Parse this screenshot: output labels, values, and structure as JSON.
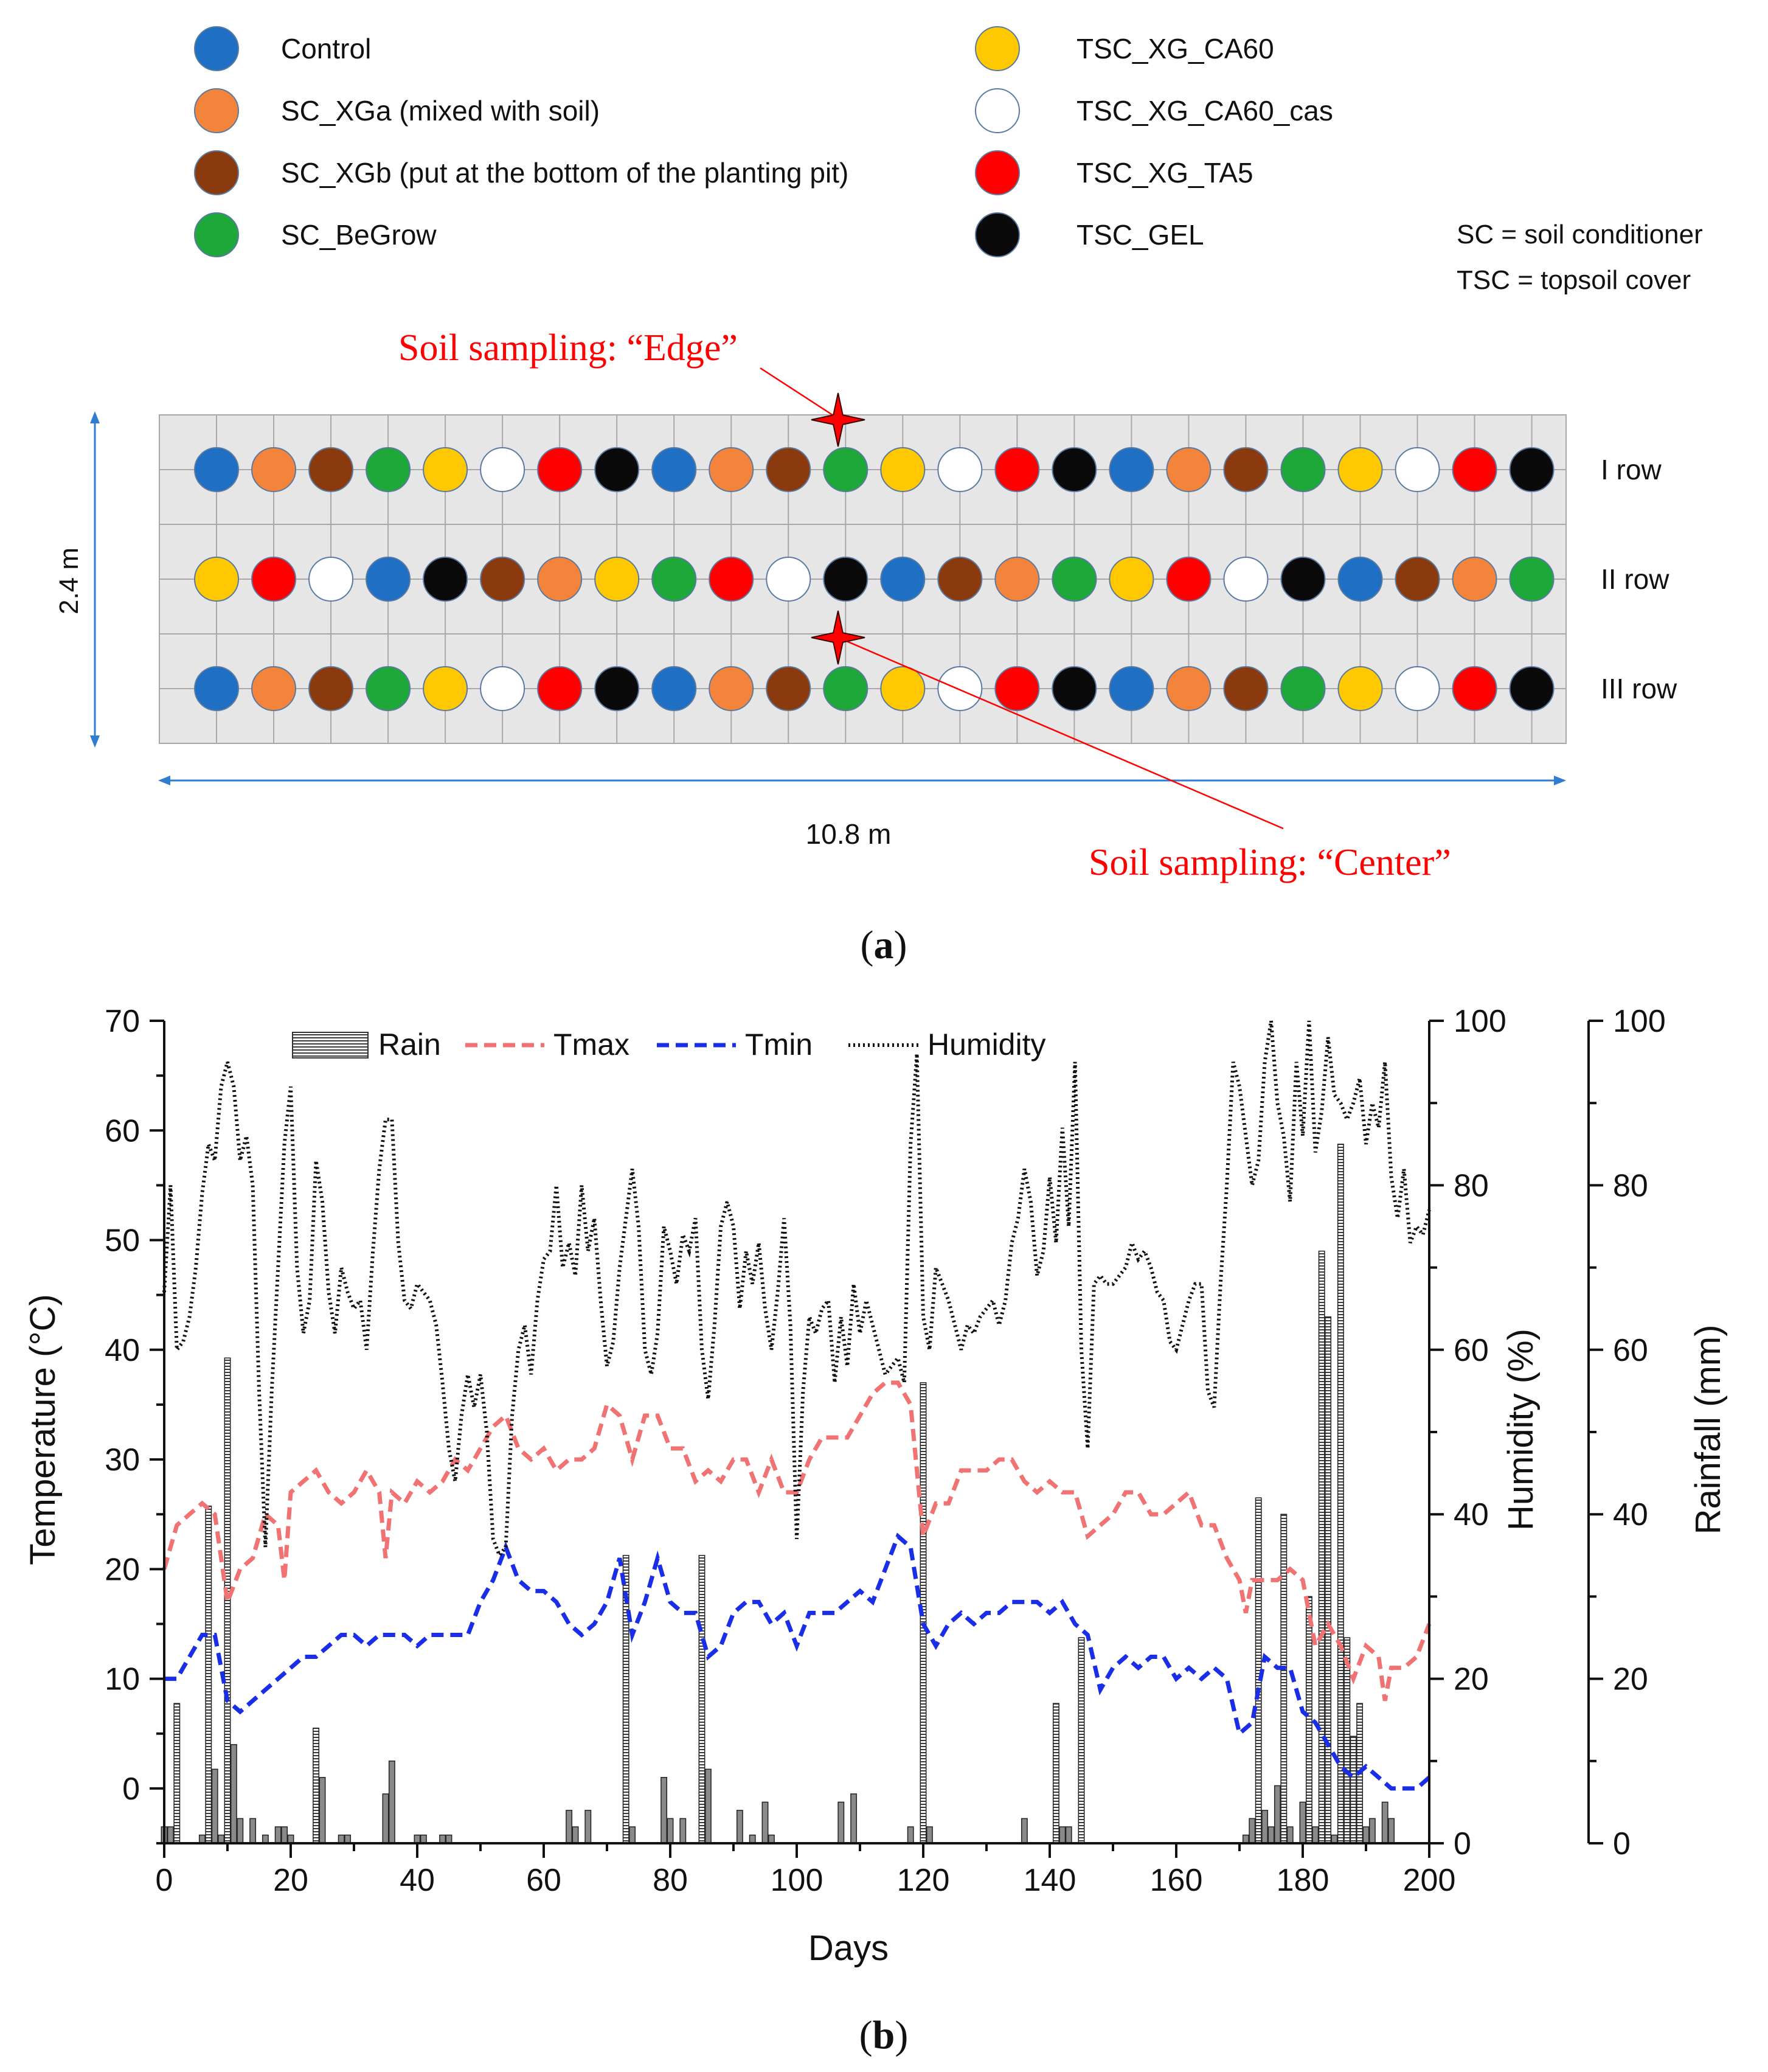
{
  "colors": {
    "control": "#1f6fc5",
    "xga": "#f4843c",
    "xgb": "#8b3a0f",
    "begrow": "#1fa83a",
    "ca60": "#ffc800",
    "cas": "#ffffff",
    "ta5": "#ff0000",
    "gel": "#0a0a0a",
    "tmax": "#f07272",
    "tmin": "#1a2ee8",
    "humidity": "#111111",
    "annotation": "#ff0000",
    "dimension": "#2e7dd1"
  },
  "legend_top": [
    {
      "key": "control",
      "label": "Control"
    },
    {
      "key": "xga",
      "label": "SC_XGa (mixed with soil)"
    },
    {
      "key": "xgb",
      "label": "SC_XGb (put at the bottom of the planting pit)"
    },
    {
      "key": "begrow",
      "label": "SC_BeGrow"
    },
    {
      "key": "ca60",
      "label": "TSC_XG_CA60"
    },
    {
      "key": "cas",
      "label": "TSC_XG_CA60_cas"
    },
    {
      "key": "ta5",
      "label": "TSC_XG_TA5"
    },
    {
      "key": "gel",
      "label": "TSC_GEL"
    }
  ],
  "abbreviations": [
    "SC = soil conditioner",
    "TSC = topsoil cover"
  ],
  "layout": {
    "rows": [
      {
        "label": "I row",
        "plots": [
          "control",
          "xga",
          "xgb",
          "begrow",
          "ca60",
          "cas",
          "ta5",
          "gel",
          "control",
          "xga",
          "xgb",
          "begrow",
          "ca60",
          "cas",
          "ta5",
          "gel",
          "control",
          "xga",
          "xgb",
          "begrow",
          "ca60",
          "cas",
          "ta5",
          "gel"
        ]
      },
      {
        "label": "II row",
        "plots": [
          "ca60",
          "ta5",
          "cas",
          "control",
          "gel",
          "xgb",
          "xga",
          "ca60",
          "begrow",
          "ta5",
          "cas",
          "gel",
          "control",
          "xgb",
          "xga",
          "begrow",
          "ca60",
          "ta5",
          "cas",
          "gel",
          "control",
          "xgb",
          "xga",
          "begrow"
        ]
      },
      {
        "label": "III row",
        "plots": [
          "control",
          "xga",
          "xgb",
          "begrow",
          "ca60",
          "cas",
          "ta5",
          "gel",
          "control",
          "xga",
          "xgb",
          "begrow",
          "ca60",
          "cas",
          "ta5",
          "gel",
          "control",
          "xga",
          "xgb",
          "begrow",
          "ca60",
          "cas",
          "ta5",
          "gel"
        ]
      }
    ],
    "height_label": "2.4 m",
    "width_label": "10.8 m",
    "sampling_edge": "Soil sampling: “Edge”",
    "sampling_center": "Soil sampling: “Center”"
  },
  "panel_labels": {
    "a": "a",
    "b": "b"
  },
  "chart_data": {
    "type": "line",
    "title": "",
    "xlabel": "Days",
    "ylabel_left": "Temperature (°C)",
    "ylabel_right1": "Humidity (%)",
    "ylabel_right2": "Rainfall (mm)",
    "xlim": [
      0,
      200
    ],
    "ylim_temperature": [
      -5,
      70
    ],
    "ylim_humidity": [
      0,
      100
    ],
    "ylim_rainfall": [
      0,
      100
    ],
    "x_ticks": [
      0,
      20,
      40,
      60,
      80,
      100,
      120,
      140,
      160,
      180,
      200
    ],
    "temperature_ticks": [
      0,
      10,
      20,
      30,
      40,
      50,
      60,
      70
    ],
    "humidity_ticks": [
      0,
      20,
      40,
      60,
      80,
      100
    ],
    "rainfall_ticks": [
      0,
      20,
      40,
      60,
      80,
      100
    ],
    "legend": {
      "rain": "Rain",
      "tmax": "Tmax",
      "tmin": "Tmin",
      "humidity": "Humidity"
    },
    "series": [
      {
        "name": "Tmax",
        "x": [
          0,
          2,
          4,
          6,
          8,
          10,
          12,
          14,
          16,
          18,
          19,
          20,
          22,
          24,
          26,
          28,
          30,
          32,
          34,
          35,
          36,
          38,
          40,
          42,
          44,
          46,
          48,
          50,
          52,
          54,
          56,
          58,
          60,
          62,
          64,
          66,
          68,
          70,
          72,
          74,
          76,
          78,
          80,
          82,
          84,
          86,
          88,
          90,
          92,
          94,
          96,
          98,
          100,
          102,
          104,
          106,
          108,
          110,
          112,
          114,
          116,
          118,
          120,
          122,
          124,
          126,
          128,
          130,
          132,
          134,
          136,
          138,
          140,
          142,
          144,
          146,
          148,
          150,
          152,
          154,
          156,
          158,
          160,
          162,
          164,
          166,
          168,
          170,
          171,
          172,
          174,
          176,
          178,
          180,
          182,
          184,
          186,
          188,
          190,
          192,
          193,
          194,
          196,
          198,
          200
        ],
        "values": [
          20,
          24,
          25,
          26,
          25,
          17,
          20,
          21,
          25,
          24,
          19,
          27,
          28,
          29,
          27,
          26,
          27,
          29,
          27,
          21,
          27,
          26,
          28,
          27,
          28,
          30,
          29,
          31,
          33,
          34,
          31,
          30,
          31,
          29,
          30,
          30,
          31,
          35,
          34,
          30,
          34,
          34,
          31,
          31,
          28,
          29,
          28,
          30,
          30,
          27,
          30,
          27,
          27,
          30,
          32,
          32,
          32,
          34,
          36,
          37,
          37,
          35,
          23,
          26,
          26,
          29,
          29,
          29,
          30,
          30,
          28,
          27,
          28,
          27,
          27,
          23,
          24,
          25,
          27,
          27,
          25,
          25,
          26,
          27,
          24,
          24,
          21,
          19,
          16,
          19,
          19,
          19,
          20,
          19,
          13,
          15,
          13,
          10,
          13,
          12,
          8,
          11,
          11,
          12,
          15
        ]
      },
      {
        "name": "Tmin",
        "x": [
          0,
          2,
          4,
          6,
          8,
          10,
          12,
          14,
          16,
          18,
          20,
          22,
          24,
          26,
          28,
          30,
          32,
          34,
          36,
          38,
          40,
          42,
          44,
          46,
          48,
          50,
          52,
          54,
          56,
          58,
          60,
          62,
          64,
          66,
          68,
          70,
          72,
          74,
          76,
          78,
          80,
          82,
          84,
          86,
          88,
          90,
          92,
          94,
          96,
          98,
          100,
          102,
          104,
          106,
          108,
          110,
          112,
          114,
          116,
          118,
          120,
          122,
          124,
          126,
          128,
          130,
          132,
          134,
          136,
          138,
          140,
          142,
          144,
          146,
          148,
          150,
          152,
          154,
          156,
          158,
          160,
          162,
          164,
          166,
          168,
          170,
          172,
          174,
          176,
          178,
          180,
          182,
          184,
          186,
          188,
          190,
          192,
          194,
          196,
          198,
          200
        ],
        "values": [
          10,
          10,
          12,
          14,
          14,
          8,
          7,
          8,
          9,
          10,
          11,
          12,
          12,
          13,
          14,
          14,
          13,
          14,
          14,
          14,
          13,
          14,
          14,
          14,
          14,
          17,
          19,
          22,
          19,
          18,
          18,
          17,
          15,
          14,
          15,
          17,
          21,
          14,
          17,
          21,
          17,
          16,
          16,
          12,
          13,
          16,
          17,
          17,
          15,
          16,
          13,
          16,
          16,
          16,
          17,
          18,
          17,
          20,
          23,
          22,
          15,
          13,
          15,
          16,
          15,
          16,
          16,
          17,
          17,
          17,
          16,
          17,
          15,
          14,
          9,
          11,
          12,
          11,
          12,
          12,
          10,
          11,
          10,
          11,
          10,
          5,
          6,
          12,
          11,
          11,
          7,
          6,
          4,
          2,
          1,
          2,
          1,
          0,
          0,
          0,
          1
        ]
      },
      {
        "name": "Humidity",
        "x": [
          0,
          1,
          2,
          3,
          4,
          5,
          6,
          7,
          8,
          9,
          10,
          11,
          12,
          13,
          14,
          15,
          16,
          17,
          18,
          19,
          20,
          21,
          22,
          23,
          24,
          25,
          26,
          27,
          28,
          29,
          30,
          31,
          32,
          33,
          34,
          35,
          36,
          37,
          38,
          39,
          40,
          41,
          42,
          43,
          44,
          45,
          46,
          47,
          48,
          49,
          50,
          51,
          52,
          53,
          54,
          55,
          56,
          57,
          58,
          59,
          60,
          61,
          62,
          63,
          64,
          65,
          66,
          67,
          68,
          69,
          70,
          71,
          72,
          73,
          74,
          75,
          76,
          77,
          78,
          79,
          80,
          81,
          82,
          83,
          84,
          85,
          86,
          87,
          88,
          89,
          90,
          91,
          92,
          93,
          94,
          95,
          96,
          97,
          98,
          99,
          100,
          101,
          102,
          103,
          104,
          105,
          106,
          107,
          108,
          109,
          110,
          111,
          112,
          113,
          114,
          115,
          116,
          117,
          118,
          119,
          120,
          121,
          122,
          123,
          124,
          125,
          126,
          127,
          128,
          129,
          130,
          131,
          132,
          133,
          134,
          135,
          136,
          137,
          138,
          139,
          140,
          141,
          142,
          143,
          144,
          145,
          146,
          147,
          148,
          149,
          150,
          151,
          152,
          153,
          154,
          155,
          156,
          157,
          158,
          159,
          160,
          161,
          162,
          163,
          164,
          165,
          166,
          167,
          168,
          169,
          170,
          171,
          172,
          173,
          174,
          175,
          176,
          177,
          178,
          179,
          180,
          181,
          182,
          183,
          184,
          185,
          186,
          187,
          188,
          189,
          190,
          191,
          192,
          193,
          194,
          195,
          196,
          197,
          198,
          199,
          200
        ],
        "values": [
          67,
          80,
          60,
          61,
          64,
          70,
          79,
          85,
          83,
          92,
          95,
          92,
          83,
          86,
          80,
          55,
          36,
          55,
          70,
          85,
          92,
          70,
          62,
          66,
          83,
          78,
          67,
          62,
          70,
          67,
          65,
          66,
          60,
          72,
          82,
          88,
          88,
          73,
          66,
          65,
          68,
          67,
          66,
          63,
          56,
          48,
          44,
          52,
          57,
          53,
          57,
          50,
          37,
          35,
          36,
          52,
          60,
          63,
          57,
          66,
          71,
          72,
          80,
          70,
          73,
          69,
          80,
          72,
          76,
          66,
          58,
          61,
          70,
          76,
          82,
          75,
          60,
          57,
          62,
          75,
          72,
          68,
          74,
          72,
          76,
          60,
          54,
          63,
          75,
          78,
          75,
          65,
          72,
          68,
          73,
          65,
          60,
          67,
          76,
          63,
          37,
          55,
          64,
          62,
          65,
          66,
          56,
          64,
          58,
          68,
          62,
          66,
          63,
          60,
          57,
          58,
          59,
          56,
          85,
          96,
          64,
          60,
          70,
          68,
          66,
          63,
          60,
          63,
          62,
          64,
          65,
          66,
          63,
          66,
          73,
          76,
          82,
          78,
          69,
          72,
          81,
          73,
          87,
          75,
          95,
          60,
          48,
          68,
          69,
          68,
          68,
          69,
          70,
          73,
          71,
          72,
          70,
          67,
          66,
          61,
          60,
          63,
          66,
          68,
          68,
          55,
          53,
          68,
          80,
          95,
          92,
          86,
          80,
          83,
          95,
          100,
          90,
          86,
          78,
          95,
          86,
          100,
          84,
          89,
          98,
          91,
          90,
          88,
          90,
          93,
          85,
          90,
          87,
          95,
          81,
          76,
          82,
          73,
          75,
          74,
          77
        ]
      },
      {
        "name": "Rain",
        "x": [
          0,
          1,
          2,
          6,
          7,
          8,
          9,
          10,
          11,
          12,
          14,
          16,
          18,
          19,
          20,
          24,
          25,
          28,
          29,
          35,
          36,
          40,
          41,
          44,
          45,
          64,
          65,
          67,
          73,
          74,
          79,
          80,
          82,
          85,
          86,
          91,
          93,
          95,
          96,
          107,
          109,
          118,
          120,
          121,
          136,
          141,
          142,
          143,
          145,
          171,
          172,
          173,
          174,
          175,
          176,
          177,
          178,
          180,
          181,
          182,
          183,
          184,
          185,
          186,
          187,
          188,
          189,
          190,
          191,
          193,
          194
        ],
        "values": [
          2,
          2,
          17,
          1,
          41,
          9,
          1,
          59,
          12,
          3,
          3,
          1,
          2,
          2,
          1,
          14,
          8,
          1,
          1,
          6,
          10,
          1,
          1,
          1,
          1,
          4,
          2,
          4,
          35,
          2,
          8,
          3,
          3,
          35,
          9,
          4,
          1,
          5,
          1,
          5,
          6,
          2,
          56,
          2,
          3,
          17,
          2,
          2,
          25,
          1,
          3,
          42,
          4,
          2,
          7,
          40,
          2,
          5,
          30,
          2,
          72,
          64,
          1,
          85,
          25,
          13,
          17,
          2,
          3,
          5,
          3
        ]
      }
    ]
  }
}
